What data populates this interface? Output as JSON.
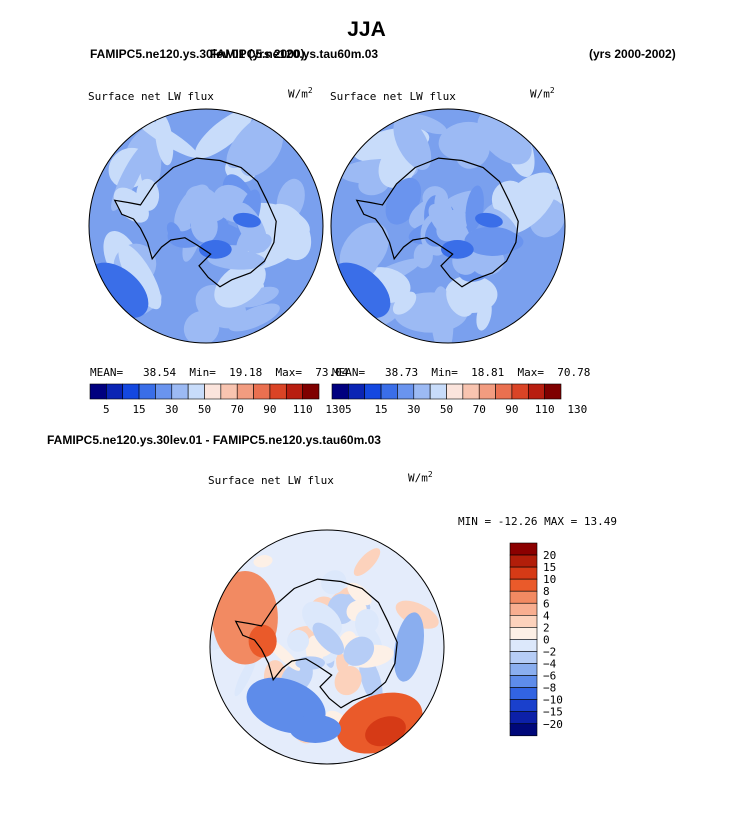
{
  "figure": {
    "season": "JJA",
    "case_left": "FAMIPC5.ne120.ys.30lev.01 (yrs 2000)",
    "case_right": "FAMIPC5.ne120.ys.tau60m.03",
    "years": "(yrs 2000-2002)",
    "diff_title": "FAMIPC5.ne120.ys.30lev.01 - FAMIPC5.ne120.ys.tau60m.03"
  },
  "colors": {
    "land_outline": "#000000",
    "ocean_base": "#a8c4f4"
  },
  "chart_data": [
    {
      "type": "heatmap",
      "projection": "south-polar-stereographic",
      "variable": "Surface net LW flux",
      "units": "W/m",
      "units_sup": "2",
      "stats": {
        "mean_label": "MEAN=",
        "mean": "38.54",
        "min_label": "Min=",
        "min": "19.18",
        "max_label": "Max=",
        "max": "73.04"
      },
      "levels": [
        "5",
        "15",
        "30",
        "50",
        "70",
        "90",
        "110",
        "130"
      ],
      "palette": [
        "#00007f",
        "#0a24b4",
        "#1448e0",
        "#3a6ee8",
        "#6a94ee",
        "#9cbaf4",
        "#c8dcfa",
        "#fbe4dc",
        "#f8c4b0",
        "#f29c80",
        "#ea7050",
        "#da4426",
        "#b81e10",
        "#7f0000"
      ]
    },
    {
      "type": "heatmap",
      "projection": "south-polar-stereographic",
      "variable": "Surface net LW flux",
      "units": "W/m",
      "units_sup": "2",
      "stats": {
        "mean_label": "MEAN=",
        "mean": "38.73",
        "min_label": "Min=",
        "min": "18.81",
        "max_label": "Max=",
        "max": "70.78"
      },
      "levels": [
        "5",
        "15",
        "30",
        "50",
        "70",
        "90",
        "110",
        "130"
      ],
      "palette": [
        "#00007f",
        "#0a24b4",
        "#1448e0",
        "#3a6ee8",
        "#6a94ee",
        "#9cbaf4",
        "#c8dcfa",
        "#fbe4dc",
        "#f8c4b0",
        "#f29c80",
        "#ea7050",
        "#da4426",
        "#b81e10",
        "#7f0000"
      ]
    },
    {
      "type": "heatmap",
      "projection": "south-polar-stereographic",
      "variable": "Surface net LW flux",
      "units": "W/m",
      "units_sup": "2",
      "min_text": "MIN = -12.26  MAX =  13.49",
      "levels": [
        "20",
        "15",
        "10",
        "8",
        "6",
        "4",
        "2",
        "0",
        "−2",
        "−4",
        "−6",
        "−8",
        "−10",
        "−15",
        "−20"
      ],
      "palette": [
        "#8b0000",
        "#b21e0a",
        "#d63a16",
        "#ea5a2a",
        "#f28a62",
        "#f8ae90",
        "#fcd2bc",
        "#fdf0e6",
        "#dce8fb",
        "#b6cdf6",
        "#8aaeef",
        "#5e8cea",
        "#3264e2",
        "#1a40cc",
        "#0c20a8",
        "#00087a"
      ]
    }
  ]
}
